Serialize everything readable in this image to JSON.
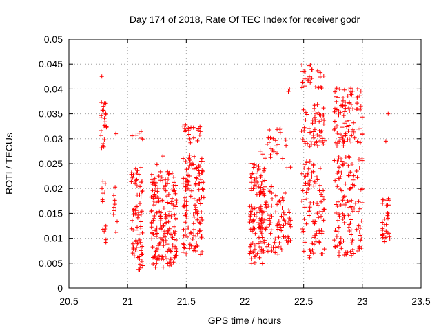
{
  "chart_data": {
    "type": "scatter",
    "title": "Day 174 of 2018, Rate Of TEC Index for receiver godr",
    "xlabel": "GPS time / hours",
    "ylabel": "ROTI / TECUs",
    "xlim": [
      20.5,
      23.5
    ],
    "ylim": [
      0,
      0.05
    ],
    "xticks": [
      20.5,
      21,
      21.5,
      22,
      22.5,
      23,
      23.5
    ],
    "xtick_labels": [
      "20.5",
      "21",
      "21.5",
      "22",
      "22.5",
      "23",
      "23.5"
    ],
    "yticks": [
      0,
      0.005,
      0.01,
      0.015,
      0.02,
      0.025,
      0.03,
      0.035,
      0.04,
      0.045,
      0.05
    ],
    "ytick_labels": [
      "0",
      "0.005",
      "0.01",
      "0.015",
      "0.02",
      "0.025",
      "0.03",
      "0.035",
      "0.04",
      "0.045",
      "0.05"
    ],
    "grid": true,
    "marker": "+",
    "color": "#ff0000",
    "clusters": [
      {
        "x_range": [
          20.77,
          20.82
        ],
        "y_ranges": [
          [
            0.0085,
            0.0125
          ],
          [
            0.0165,
            0.0215
          ],
          [
            0.028,
            0.0375
          ]
        ],
        "extra": [
          [
            20.78,
            0.0425
          ]
        ],
        "n": 36
      },
      {
        "x_range": [
          20.88,
          20.92
        ],
        "y_ranges": [
          [
            0.011,
            0.0205
          ]
        ],
        "extra": [
          [
            20.9,
            0.031
          ]
        ],
        "n": 10
      },
      {
        "x_range": [
          21.03,
          21.13
        ],
        "y_ranges": [
          [
            0.0035,
            0.0245
          ],
          [
            0.0295,
            0.0315
          ]
        ],
        "extra": [],
        "n": 85
      },
      {
        "x_range": [
          21.2,
          21.42
        ],
        "y_ranges": [
          [
            0.004,
            0.0235
          ]
        ],
        "extra": [
          [
            21.3,
            0.0265
          ],
          [
            21.25,
            0.0248
          ]
        ],
        "n": 190
      },
      {
        "x_range": [
          21.47,
          21.65
        ],
        "y_ranges": [
          [
            0.0065,
            0.0185
          ],
          [
            0.0195,
            0.027
          ],
          [
            0.029,
            0.033
          ]
        ],
        "extra": [],
        "n": 165
      },
      {
        "x_range": [
          22.04,
          22.17
        ],
        "y_ranges": [
          [
            0.0045,
            0.0165
          ],
          [
            0.0185,
            0.0255
          ]
        ],
        "extra": [
          [
            22.13,
            0.0275
          ]
        ],
        "n": 130
      },
      {
        "x_range": [
          22.15,
          22.35
        ],
        "y_ranges": [
          [
            0.0065,
            0.0205
          ],
          [
            0.026,
            0.033
          ]
        ],
        "extra": [
          [
            22.3,
            0.032
          ]
        ],
        "n": 90
      },
      {
        "x_range": [
          22.35,
          22.4
        ],
        "y_ranges": [
          [
            0.009,
            0.016
          ],
          [
            0.024,
            0.0255
          ]
        ],
        "extra": [
          [
            22.37,
            0.0395
          ],
          [
            22.38,
            0.04
          ]
        ],
        "n": 18
      },
      {
        "x_range": [
          22.48,
          22.68
        ],
        "y_ranges": [
          [
            0.006,
            0.0255
          ],
          [
            0.028,
            0.0375
          ],
          [
            0.04,
            0.045
          ]
        ],
        "extra": [],
        "n": 180
      },
      {
        "x_range": [
          22.76,
          23.0
        ],
        "y_ranges": [
          [
            0.0065,
            0.0185
          ],
          [
            0.0195,
            0.0265
          ],
          [
            0.0285,
            0.0405
          ]
        ],
        "extra": [],
        "n": 220
      },
      {
        "x_range": [
          23.17,
          23.24
        ],
        "y_ranges": [
          [
            0.009,
            0.018
          ]
        ],
        "extra": [
          [
            23.2,
            0.0295
          ],
          [
            23.22,
            0.035
          ]
        ],
        "n": 34
      }
    ]
  }
}
